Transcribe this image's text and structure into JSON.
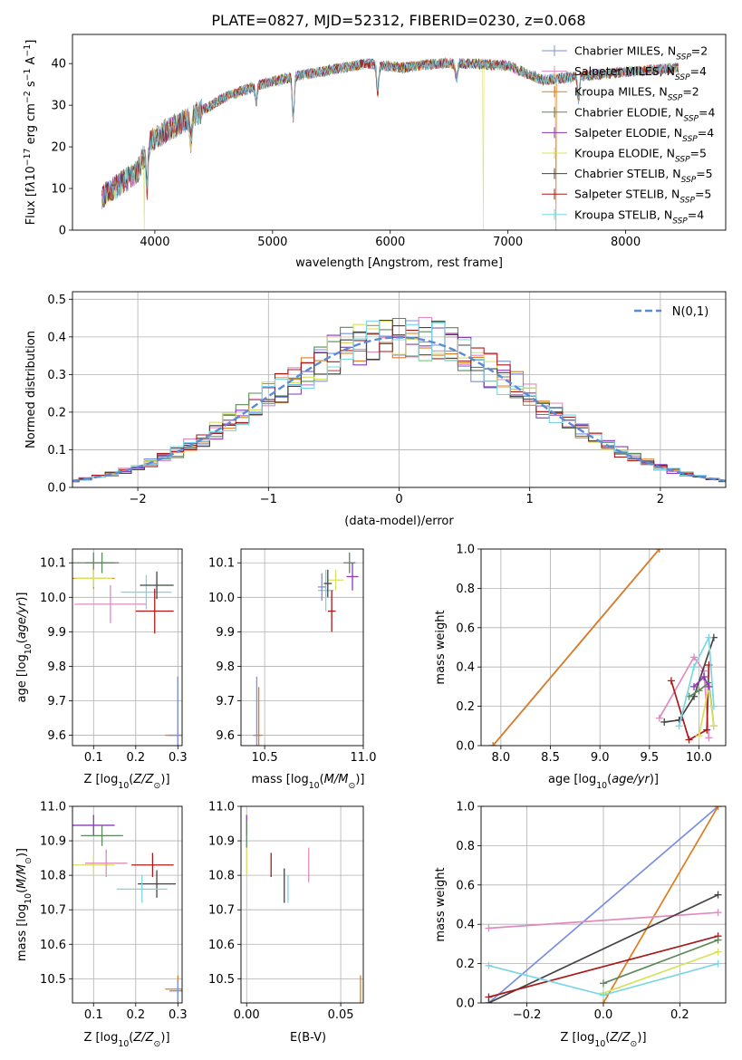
{
  "title": "PLATE=0827, MJD=52312, FIBERID=0230, z=0.068",
  "colors": [
    "#7b8fe0",
    "#e08abf",
    "#e07b1e",
    "#5a8a5a",
    "#8a3ab9",
    "#d8e060",
    "#444444",
    "#aa1a1a",
    "#7ad6e6"
  ],
  "legend_labels": [
    "Chabrier MILES, N_SSP=2",
    "Salpeter MILES, N_SSP=4",
    "Kroupa MILES, N_SSP=2",
    "Chabrier ELODIE, N_SSP=4",
    "Salpeter ELODIE, N_SSP=4",
    "Kroupa ELODIE, N_SSP=5",
    "Chabrier STELIB, N_SSP=5",
    "Salpeter STELIB, N_SSP=5",
    "Kroupa STELIB, N_SSP=4"
  ],
  "chart_data": [
    {
      "id": "spectrum",
      "type": "line",
      "xlabel": "wavelength [Angstrom, rest frame]",
      "ylabel": "Flux [fλ10^-17 erg cm^-2 s^-1 A^-1]",
      "xlim": [
        3300,
        8850
      ],
      "ylim": [
        0,
        47
      ],
      "xticks": [
        4000,
        5000,
        6000,
        7000,
        8000
      ],
      "yticks": [
        0,
        10,
        20,
        30,
        40
      ],
      "legend_position": "top-right",
      "continuum": {
        "x": [
          3550,
          3700,
          3850,
          3950,
          4100,
          4300,
          4600,
          4900,
          5200,
          5500,
          5800,
          6100,
          6400,
          6700,
          7000,
          7300,
          7600,
          8000,
          8450
        ],
        "y": [
          8,
          11,
          14,
          21,
          24,
          27,
          32,
          35,
          37,
          38.5,
          40,
          39,
          40,
          40,
          39.5,
          36,
          37,
          38,
          39
        ]
      },
      "absorption_dips": [
        {
          "x": 3934,
          "depth": 10
        },
        {
          "x": 4305,
          "depth": 6
        },
        {
          "x": 4861,
          "depth": 4
        },
        {
          "x": 5175,
          "depth": 10
        },
        {
          "x": 5893,
          "depth": 7
        },
        {
          "x": 6563,
          "depth": 4
        },
        {
          "x": 7600,
          "depth": 6
        }
      ],
      "spikes_to_zero": [
        {
          "x": 3910,
          "series": 5
        },
        {
          "x": 6790,
          "series": 5
        },
        {
          "x": 7410,
          "series": 2
        }
      ]
    },
    {
      "id": "residuals",
      "type": "histogram",
      "xlabel": "(data-model)/error",
      "ylabel": "Normed distribution",
      "xlim": [
        -2.5,
        2.5
      ],
      "ylim": [
        0,
        0.52
      ],
      "xticks": [
        -2,
        -1,
        0,
        1,
        2
      ],
      "yticks": [
        0.0,
        0.1,
        0.2,
        0.3,
        0.4,
        0.5
      ],
      "bin_width": 0.1,
      "reference_curve": {
        "label": "N(0,1)",
        "style": "dashed",
        "color": "#5b8bd6",
        "mean": 0,
        "sigma": 1
      },
      "legend_position": "top-right"
    },
    {
      "id": "age_vs_Z",
      "type": "scatter",
      "xlabel": "Z [log10(Z/Z⊙)]",
      "ylabel": "age  [log10(age/yr)]",
      "xlim": [
        0.05,
        0.31
      ],
      "ylim": [
        9.57,
        10.14
      ],
      "xticks": [
        0.1,
        0.2,
        0.3
      ],
      "yticks": [
        9.6,
        9.7,
        9.8,
        9.9,
        10.0,
        10.1
      ],
      "points": [
        {
          "x": 0.1,
          "y": 10.1,
          "ex": 0.05,
          "ey": 0.03,
          "series": 3
        },
        {
          "x": 0.12,
          "y": 10.1,
          "ex": 0.04,
          "ey": 0.03,
          "series": 3
        },
        {
          "x": 0.1,
          "y": 10.055,
          "ex": 0.05,
          "ey": 0.03,
          "series": 2
        },
        {
          "x": 0.1,
          "y": 10.055,
          "ex": 0.045,
          "ey": 0.025,
          "series": 5
        },
        {
          "x": 0.225,
          "y": 10.015,
          "ex": 0.06,
          "ey": 0.05,
          "series": 8
        },
        {
          "x": 0.25,
          "y": 10.035,
          "ex": 0.04,
          "ey": 0.04,
          "series": 6
        },
        {
          "x": 0.14,
          "y": 9.98,
          "ex": 0.085,
          "ey": 0.055,
          "series": 1
        },
        {
          "x": 0.245,
          "y": 9.96,
          "ex": 0.045,
          "ey": 0.065,
          "series": 7
        },
        {
          "x": 0.3,
          "y": 9.6,
          "ex": 0.03,
          "ey": 0.17,
          "series": 2
        },
        {
          "x": 0.3,
          "y": 9.6,
          "ex": 0.02,
          "ey": 0.17,
          "series": 0
        }
      ]
    },
    {
      "id": "age_vs_mass",
      "type": "scatter",
      "xlabel": "mass [log10(M/M⊙)]",
      "ylabel": "",
      "xlim": [
        10.38,
        11.0
      ],
      "ylim": [
        9.57,
        10.14
      ],
      "xticks": [
        10.5,
        11.0
      ],
      "yticks": [
        9.6,
        9.7,
        9.8,
        9.9,
        10.0,
        10.1
      ],
      "points": [
        {
          "x": 10.93,
          "y": 10.1,
          "ex": 0.03,
          "ey": 0.03,
          "series": 3
        },
        {
          "x": 10.945,
          "y": 10.06,
          "ex": 0.03,
          "ey": 0.04,
          "series": 4
        },
        {
          "x": 10.86,
          "y": 10.05,
          "ex": 0.04,
          "ey": 0.03,
          "series": 5
        },
        {
          "x": 10.81,
          "y": 10.02,
          "ex": 0.04,
          "ey": 0.06,
          "series": 8
        },
        {
          "x": 10.79,
          "y": 10.03,
          "ex": 0.02,
          "ey": 0.04,
          "series": 0
        },
        {
          "x": 10.82,
          "y": 10.04,
          "ex": 0.02,
          "ey": 0.04,
          "series": 6
        },
        {
          "x": 10.84,
          "y": 9.96,
          "ex": 0.02,
          "ey": 0.06,
          "series": 7
        },
        {
          "x": 10.46,
          "y": 9.6,
          "ex": 0.02,
          "ey": 0.17,
          "series": 0
        },
        {
          "x": 10.47,
          "y": 9.6,
          "ex": 0.02,
          "ey": 0.14,
          "series": 2
        }
      ]
    },
    {
      "id": "weight_vs_age",
      "type": "line",
      "xlabel": "age  [log10(age/yr)]",
      "ylabel": "mass weight",
      "xlim": [
        7.8,
        10.27
      ],
      "ylim": [
        0,
        1.0
      ],
      "xticks": [
        8.0,
        8.5,
        9.0,
        9.5,
        10.0
      ],
      "yticks": [
        0.0,
        0.2,
        0.4,
        0.6,
        0.8,
        1.0
      ],
      "series": [
        {
          "color_index": 0,
          "x": [
            7.92,
            9.6
          ],
          "y": [
            0.0,
            1.0
          ]
        },
        {
          "color_index": 2,
          "x": [
            7.92,
            9.6
          ],
          "y": [
            0.0,
            1.0
          ]
        },
        {
          "color_index": 1,
          "x": [
            9.6,
            9.95,
            10.05,
            10.1
          ],
          "y": [
            0.14,
            0.45,
            0.38,
            0.04
          ]
        },
        {
          "color_index": 7,
          "x": [
            9.72,
            9.9,
            10.08,
            10.1
          ],
          "y": [
            0.33,
            0.03,
            0.08,
            0.41
          ]
        },
        {
          "color_index": 6,
          "x": [
            9.65,
            9.8,
            9.95,
            10.15
          ],
          "y": [
            0.12,
            0.13,
            0.25,
            0.55
          ]
        },
        {
          "color_index": 3,
          "x": [
            9.9,
            10.0,
            10.1,
            10.15
          ],
          "y": [
            0.25,
            0.28,
            0.32,
            0.1
          ]
        },
        {
          "color_index": 8,
          "x": [
            9.8,
            9.95,
            10.1,
            10.15
          ],
          "y": [
            0.1,
            0.4,
            0.55,
            0.2
          ]
        },
        {
          "color_index": 5,
          "x": [
            10.0,
            10.1,
            10.15
          ],
          "y": [
            0.05,
            0.3,
            0.1
          ]
        },
        {
          "color_index": 4,
          "x": [
            9.95,
            10.05,
            10.1
          ],
          "y": [
            0.3,
            0.35,
            0.3
          ]
        }
      ]
    },
    {
      "id": "mass_vs_Z",
      "type": "scatter",
      "xlabel": "Z [log10(Z/Z⊙)]",
      "ylabel": "mass [log10(M/M⊙)]",
      "xlim": [
        0.05,
        0.31
      ],
      "ylim": [
        10.43,
        11.0
      ],
      "xticks": [
        0.1,
        0.2,
        0.3
      ],
      "yticks": [
        10.5,
        10.6,
        10.7,
        10.8,
        10.9,
        11.0
      ],
      "points": [
        {
          "x": 0.1,
          "y": 10.945,
          "ex": 0.05,
          "ey": 0.03,
          "series": 4
        },
        {
          "x": 0.12,
          "y": 10.915,
          "ex": 0.05,
          "ey": 0.03,
          "series": 3
        },
        {
          "x": 0.1,
          "y": 10.83,
          "ex": 0.05,
          "ey": 0.03,
          "series": 5
        },
        {
          "x": 0.13,
          "y": 10.835,
          "ex": 0.05,
          "ey": 0.04,
          "series": 1
        },
        {
          "x": 0.24,
          "y": 10.83,
          "ex": 0.05,
          "ey": 0.035,
          "series": 7
        },
        {
          "x": 0.25,
          "y": 10.775,
          "ex": 0.045,
          "ey": 0.04,
          "series": 6
        },
        {
          "x": 0.215,
          "y": 10.76,
          "ex": 0.06,
          "ey": 0.04,
          "series": 8
        },
        {
          "x": 0.3,
          "y": 10.47,
          "ex": 0.03,
          "ey": 0.04,
          "series": 2
        },
        {
          "x": 0.3,
          "y": 10.465,
          "ex": 0.02,
          "ey": 0.03,
          "series": 0
        }
      ]
    },
    {
      "id": "mass_vs_EBV",
      "type": "scatter",
      "xlabel": "E(B-V)",
      "ylabel": "",
      "xlim": [
        -0.003,
        0.062
      ],
      "ylim": [
        10.43,
        11.0
      ],
      "xticks": [
        0.0,
        0.05
      ],
      "yticks": [
        10.5,
        10.6,
        10.7,
        10.8,
        10.9,
        11.0
      ],
      "points": [
        {
          "x": 0.0,
          "y": 10.945,
          "ey": 0.03,
          "series": 4
        },
        {
          "x": 0.0,
          "y": 10.92,
          "ey": 0.04,
          "series": 3
        },
        {
          "x": 0.0,
          "y": 10.84,
          "ey": 0.04,
          "series": 5
        },
        {
          "x": 0.013,
          "y": 10.83,
          "ey": 0.035,
          "series": 7
        },
        {
          "x": 0.02,
          "y": 10.77,
          "ey": 0.05,
          "series": 6
        },
        {
          "x": 0.022,
          "y": 10.76,
          "ey": 0.04,
          "series": 8
        },
        {
          "x": 0.033,
          "y": 10.83,
          "ey": 0.05,
          "series": 1
        },
        {
          "x": 0.0605,
          "y": 10.47,
          "ey": 0.04,
          "series": 2
        }
      ]
    },
    {
      "id": "weight_vs_Z",
      "type": "line",
      "xlabel": "Z [log10(Z/Z⊙)]",
      "ylabel": "mass weight",
      "xlim": [
        -0.32,
        0.32
      ],
      "ylim": [
        0,
        1.0
      ],
      "xticks": [
        -0.2,
        0.0,
        0.2
      ],
      "yticks": [
        0.0,
        0.2,
        0.4,
        0.6,
        0.8,
        1.0
      ],
      "series": [
        {
          "color_index": 0,
          "x": [
            -0.3,
            0.3
          ],
          "y": [
            0.0,
            1.0
          ]
        },
        {
          "color_index": 2,
          "x": [
            0.0,
            0.3
          ],
          "y": [
            0.0,
            1.0
          ]
        },
        {
          "color_index": 1,
          "x": [
            -0.3,
            0.3
          ],
          "y": [
            0.38,
            0.46
          ]
        },
        {
          "color_index": 6,
          "x": [
            -0.3,
            0.3
          ],
          "y": [
            0.0,
            0.55
          ]
        },
        {
          "color_index": 7,
          "x": [
            -0.3,
            0.3
          ],
          "y": [
            0.03,
            0.34
          ]
        },
        {
          "color_index": 3,
          "x": [
            0.0,
            0.3
          ],
          "y": [
            0.1,
            0.32
          ]
        },
        {
          "color_index": 5,
          "x": [
            0.0,
            0.3
          ],
          "y": [
            0.05,
            0.26
          ]
        },
        {
          "color_index": 8,
          "x": [
            -0.3,
            0.0,
            0.3
          ],
          "y": [
            0.19,
            0.04,
            0.2
          ]
        }
      ]
    }
  ]
}
